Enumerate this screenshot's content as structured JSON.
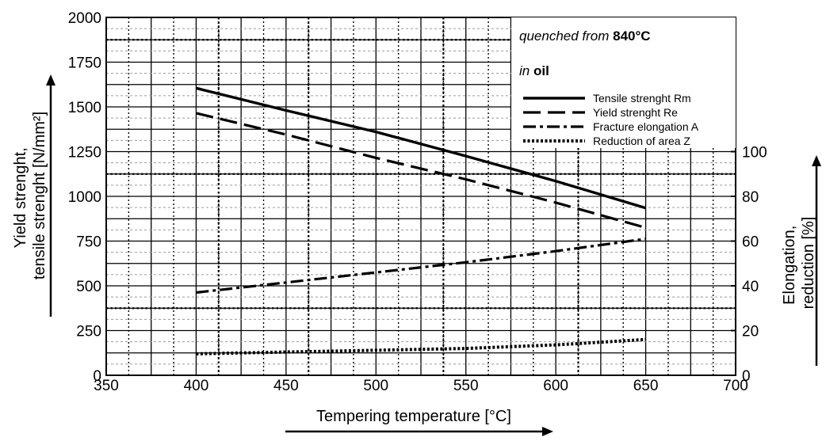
{
  "chart_data": {
    "type": "line",
    "annotation": {
      "line1_italic": "quenched from ",
      "line1_bold": "840°C",
      "line2_italic": "in ",
      "line2_bold": "oil"
    },
    "xlabel": "Tempering temperature [°C]",
    "ylabel_left": [
      "Yield strenght,",
      "tensile strenght [N/mm²]"
    ],
    "ylabel_right": [
      "Elongation,",
      "reduction [%]"
    ],
    "xlim": [
      350,
      700
    ],
    "ylim_left": [
      0,
      2000
    ],
    "ylim_right": [
      0,
      160
    ],
    "x_ticks": [
      350,
      400,
      450,
      500,
      550,
      600,
      650,
      700
    ],
    "y_left_ticks": [
      0,
      250,
      500,
      750,
      1000,
      1250,
      1500,
      1750,
      2000
    ],
    "y_right_ticks": [
      0,
      20,
      40,
      60,
      80,
      100
    ],
    "grid": true,
    "legend_position": "top-right",
    "series": [
      {
        "name": "Tensile strenght Rm",
        "axis": "left",
        "style": "solid",
        "x": [
          400,
          450,
          500,
          550,
          600,
          650
        ],
        "y": [
          1605,
          1480,
          1360,
          1225,
          1085,
          935
        ]
      },
      {
        "name": "Yield strenght Re",
        "axis": "left",
        "style": "dashed",
        "x": [
          400,
          450,
          500,
          550,
          600,
          650
        ],
        "y": [
          1465,
          1345,
          1215,
          1095,
          965,
          825
        ]
      },
      {
        "name": "Fracture elongation A",
        "axis": "right",
        "style": "dashdot",
        "x": [
          400,
          450,
          500,
          550,
          600,
          650
        ],
        "y": [
          37,
          41.5,
          46,
          50.5,
          55.5,
          61
        ]
      },
      {
        "name": "Reduction of area Z",
        "axis": "right",
        "style": "dotted",
        "x": [
          400,
          450,
          500,
          550,
          600,
          650
        ],
        "y": [
          9.6,
          10.4,
          11.2,
          12.0,
          13.6,
          16.0
        ]
      }
    ]
  }
}
